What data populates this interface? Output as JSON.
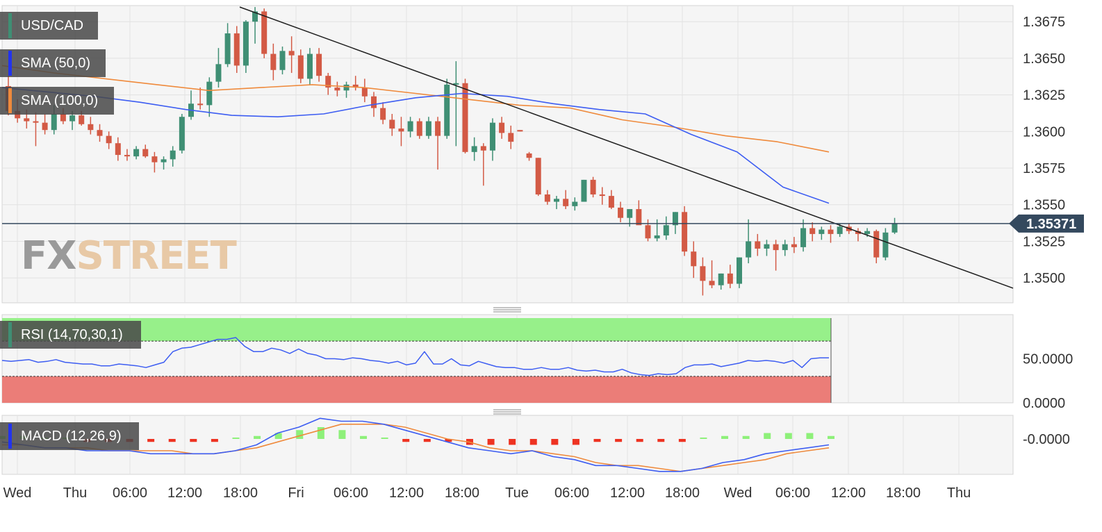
{
  "labels": {
    "pair": "USD/CAD",
    "sma50": "SMA (50,0)",
    "sma100": "SMA (100,0)",
    "rsi": "RSI (14,70,30,1)",
    "macd": "MACD (12,26,9)"
  },
  "watermark": {
    "fx": "FX",
    "street": "STREET"
  },
  "colors": {
    "up": "#3f8f74",
    "down": "#d35a45",
    "sma50": "#3d5df2",
    "sma100": "#ef8a3c",
    "trendline": "#1e1e1e",
    "price_line": "#34495e",
    "price_badge": "#34495e",
    "rsi_line": "#3d5df2",
    "rsi_overbought_zone": "#97f08a",
    "rsi_oversold_zone": "#eb7d78",
    "macd_line": "#3d5df2",
    "signal_line": "#ef8a3c",
    "hist_pos": "#8ef07a",
    "hist_neg": "#ee3322",
    "pair_bar": "#3f8f74",
    "sma50_bar": "#2233ee",
    "sma100_bar": "#ef8a3c",
    "rsi_bar": "#3f8f74",
    "macd_bar": "#2233ee"
  },
  "chart_data": [
    {
      "type": "candlestick",
      "title": "USD/CAD",
      "x_ticks": [
        "Wed",
        "Thu",
        "06:00",
        "12:00",
        "18:00",
        "Fri",
        "06:00",
        "12:00",
        "18:00",
        "Tue",
        "06:00",
        "12:00",
        "18:00",
        "Wed",
        "06:00",
        "12:00",
        "18:00",
        "Thu"
      ],
      "y_ticks": [
        "1.3675",
        "1.3650",
        "1.3625",
        "1.3600",
        "1.3575",
        "1.3550",
        "1.3525",
        "1.3500"
      ],
      "ylim": [
        1.3483,
        1.3686
      ],
      "current_price": "1.35371",
      "ohlc": [
        [
          1.3631,
          1.3638,
          1.3611,
          1.3614
        ],
        [
          1.3614,
          1.3622,
          1.3606,
          1.3609
        ],
        [
          1.3609,
          1.3615,
          1.3602,
          1.3607
        ],
        [
          1.3607,
          1.3613,
          1.359,
          1.3606
        ],
        [
          1.3606,
          1.3612,
          1.3598,
          1.3601
        ],
        [
          1.3601,
          1.3618,
          1.3598,
          1.3612
        ],
        [
          1.3612,
          1.3616,
          1.3605,
          1.3607
        ],
        [
          1.3607,
          1.3614,
          1.3601,
          1.3611
        ],
        [
          1.3611,
          1.3614,
          1.3604,
          1.3605
        ],
        [
          1.3605,
          1.361,
          1.3598,
          1.3601
        ],
        [
          1.3601,
          1.3605,
          1.3593,
          1.3597
        ],
        [
          1.3597,
          1.36,
          1.3588,
          1.3592
        ],
        [
          1.3592,
          1.3596,
          1.358,
          1.3584
        ],
        [
          1.3584,
          1.3588,
          1.358,
          1.3583
        ],
        [
          1.3583,
          1.359,
          1.3581,
          1.3588
        ],
        [
          1.3588,
          1.3591,
          1.3582,
          1.3583
        ],
        [
          1.3583,
          1.3586,
          1.3572,
          1.3579
        ],
        [
          1.3579,
          1.3583,
          1.3574,
          1.3581
        ],
        [
          1.3581,
          1.359,
          1.3576,
          1.3587
        ],
        [
          1.3587,
          1.3612,
          1.3585,
          1.361
        ],
        [
          1.361,
          1.3628,
          1.3608,
          1.3619
        ],
        [
          1.3619,
          1.363,
          1.3615,
          1.3618
        ],
        [
          1.3618,
          1.3637,
          1.361,
          1.3634
        ],
        [
          1.3634,
          1.3657,
          1.363,
          1.3646
        ],
        [
          1.3646,
          1.3674,
          1.3644,
          1.3667
        ],
        [
          1.3667,
          1.3672,
          1.364,
          1.3645
        ],
        [
          1.3645,
          1.3676,
          1.364,
          1.3675
        ],
        [
          1.3675,
          1.3685,
          1.366,
          1.3682
        ],
        [
          1.3682,
          1.3684,
          1.365,
          1.3653
        ],
        [
          1.3653,
          1.366,
          1.3635,
          1.3642
        ],
        [
          1.3642,
          1.3658,
          1.3639,
          1.3655
        ],
        [
          1.3655,
          1.3665,
          1.364,
          1.3652
        ],
        [
          1.3652,
          1.3656,
          1.3633,
          1.3636
        ],
        [
          1.3636,
          1.3657,
          1.3632,
          1.3653
        ],
        [
          1.3653,
          1.3657,
          1.3634,
          1.3638
        ],
        [
          1.3638,
          1.364,
          1.3625,
          1.363
        ],
        [
          1.363,
          1.3634,
          1.3624,
          1.3628
        ],
        [
          1.3628,
          1.3634,
          1.3623,
          1.3632
        ],
        [
          1.3632,
          1.3638,
          1.3628,
          1.363
        ],
        [
          1.363,
          1.3636,
          1.362,
          1.3624
        ],
        [
          1.3624,
          1.3627,
          1.361,
          1.3616
        ],
        [
          1.3616,
          1.362,
          1.3605,
          1.3608
        ],
        [
          1.3608,
          1.3612,
          1.3597,
          1.3602
        ],
        [
          1.3602,
          1.361,
          1.359,
          1.36
        ],
        [
          1.36,
          1.361,
          1.3596,
          1.3607
        ],
        [
          1.3607,
          1.3609,
          1.3595,
          1.3597
        ],
        [
          1.3597,
          1.361,
          1.3595,
          1.3607
        ],
        [
          1.3607,
          1.361,
          1.3574,
          1.3597
        ],
        [
          1.3597,
          1.3636,
          1.3595,
          1.3632
        ],
        [
          1.3632,
          1.3648,
          1.359,
          1.3633
        ],
        [
          1.3633,
          1.3636,
          1.3585,
          1.3586
        ],
        [
          1.3586,
          1.3596,
          1.358,
          1.359
        ],
        [
          1.359,
          1.3592,
          1.3563,
          1.3587
        ],
        [
          1.3587,
          1.3609,
          1.358,
          1.3606
        ],
        [
          1.3606,
          1.361,
          1.3595,
          1.3599
        ],
        [
          1.3599,
          1.3604,
          1.3588,
          1.3593
        ],
        [
          1.3601,
          1.3601,
          1.36,
          1.36
        ],
        [
          1.3585,
          1.3586,
          1.358,
          1.3582
        ],
        [
          1.3582,
          1.3582,
          1.3556,
          1.3557
        ],
        [
          1.3557,
          1.356,
          1.355,
          1.3552
        ],
        [
          1.3552,
          1.3556,
          1.3547,
          1.3554
        ],
        [
          1.3554,
          1.356,
          1.3547,
          1.3549
        ],
        [
          1.3549,
          1.3555,
          1.3546,
          1.3552
        ],
        [
          1.3552,
          1.3567,
          1.3552,
          1.3567
        ],
        [
          1.3567,
          1.3569,
          1.3555,
          1.3557
        ],
        [
          1.3557,
          1.3562,
          1.355,
          1.3556
        ],
        [
          1.3556,
          1.356,
          1.3547,
          1.3548
        ],
        [
          1.3548,
          1.3552,
          1.3538,
          1.3541
        ],
        [
          1.3541,
          1.3546,
          1.3535,
          1.3547
        ],
        [
          1.3547,
          1.3553,
          1.3537,
          1.3536
        ],
        [
          1.3536,
          1.354,
          1.3525,
          1.3527
        ],
        [
          1.3527,
          1.354,
          1.3525,
          1.3529
        ],
        [
          1.3529,
          1.3542,
          1.3526,
          1.3536
        ],
        [
          1.3536,
          1.3545,
          1.353,
          1.3545
        ],
        [
          1.3545,
          1.3549,
          1.3515,
          1.3518
        ],
        [
          1.3518,
          1.3525,
          1.35,
          1.3508
        ],
        [
          1.3508,
          1.3514,
          1.3488,
          1.3498
        ],
        [
          1.3498,
          1.3512,
          1.3493,
          1.3495
        ],
        [
          1.3495,
          1.3503,
          1.3492,
          1.3503
        ],
        [
          1.3503,
          1.3509,
          1.3493,
          1.3496
        ],
        [
          1.3496,
          1.3514,
          1.3493,
          1.3514
        ],
        [
          1.3514,
          1.354,
          1.351,
          1.3525
        ],
        [
          1.3525,
          1.353,
          1.3515,
          1.352
        ],
        [
          1.352,
          1.3526,
          1.3515,
          1.3523
        ],
        [
          1.3523,
          1.3526,
          1.3505,
          1.3519
        ],
        [
          1.3519,
          1.3526,
          1.3515,
          1.3523
        ],
        [
          1.3523,
          1.3528,
          1.3517,
          1.3521
        ],
        [
          1.3521,
          1.354,
          1.3518,
          1.3534
        ],
        [
          1.3534,
          1.3538,
          1.3525,
          1.353
        ],
        [
          1.353,
          1.3535,
          1.3526,
          1.3533
        ],
        [
          1.3533,
          1.3536,
          1.3524,
          1.353
        ],
        [
          1.353,
          1.3537,
          1.3528,
          1.3535
        ],
        [
          1.3535,
          1.3537,
          1.353,
          1.3532
        ],
        [
          1.3532,
          1.3534,
          1.3525,
          1.353
        ],
        [
          1.353,
          1.3534,
          1.3528,
          1.3532
        ],
        [
          1.3532,
          1.3533,
          1.351,
          1.3514
        ],
        [
          1.3514,
          1.3534,
          1.3512,
          1.3531
        ],
        [
          1.3531,
          1.3541,
          1.353,
          1.3537
        ]
      ],
      "sma50": [
        1.363,
        1.3627,
        1.3624,
        1.362,
        1.3615,
        1.3611,
        1.361,
        1.3612,
        1.3618,
        1.3623,
        1.3626,
        1.3624,
        1.3619,
        1.3615,
        1.3612,
        1.3598,
        1.3586,
        1.3562,
        1.3551
      ],
      "sma100": [
        1.3645,
        1.364,
        1.3636,
        1.3632,
        1.3628,
        1.363,
        1.3632,
        1.363,
        1.3626,
        1.3622,
        1.3618,
        1.3616,
        1.3608,
        1.3603,
        1.3597,
        1.3593,
        1.3586
      ],
      "trendline": [
        [
          1.3685,
          1.3493
        ]
      ]
    },
    {
      "type": "line",
      "title": "RSI (14,70,30,1)",
      "y_ticks": [
        "50.0000",
        "0.0000"
      ],
      "ylim": [
        0,
        100
      ],
      "overbought": 70,
      "oversold": 30,
      "values": [
        48,
        47,
        48,
        49,
        46,
        47,
        49,
        46,
        45,
        44,
        44,
        42,
        42,
        44,
        43,
        42,
        40,
        43,
        46,
        58,
        62,
        63,
        66,
        69,
        72,
        72,
        74,
        64,
        58,
        58,
        62,
        60,
        56,
        61,
        56,
        54,
        50,
        50,
        49,
        51,
        50,
        48,
        47,
        45,
        47,
        43,
        45,
        58,
        44,
        44,
        50,
        43,
        42,
        47,
        44,
        41,
        40,
        40,
        38,
        38,
        40,
        38,
        38,
        40,
        37,
        36,
        37,
        35,
        35,
        38,
        34,
        32,
        31,
        33,
        32,
        33,
        40,
        43,
        43,
        44,
        41,
        43,
        45,
        48,
        47,
        48,
        47,
        45,
        48,
        40,
        50,
        51,
        51
      ]
    },
    {
      "type": "bar",
      "title": "MACD (12,26,9)",
      "y_ticks": [
        "-0.0000"
      ],
      "ylim": [
        -0.0012,
        0.0008
      ],
      "macd": [
        -0.0001,
        -0.0002,
        -0.0003,
        -0.0003,
        -0.0004,
        -0.0004,
        -0.0004,
        -0.0005,
        -0.0005,
        -0.0005,
        -0.0005,
        -0.0004,
        -0.0002,
        0.0002,
        0.0004,
        0.0007,
        0.0006,
        0.0006,
        0.0005,
        0.0003,
        0.0001,
        -0.0001,
        -0.0003,
        -0.0004,
        -0.0005,
        -0.0004,
        -0.0006,
        -0.0007,
        -0.0009,
        -0.0009,
        -0.001,
        -0.0011,
        -0.0011,
        -0.001,
        -0.0008,
        -0.0007,
        -0.0005,
        -0.0004,
        -0.0003,
        -0.0002
      ],
      "signal": [
        -0.0002,
        -0.0002,
        -0.0003,
        -0.0003,
        -0.0003,
        -0.0004,
        -0.0004,
        -0.0004,
        -0.0004,
        -0.0005,
        -0.0005,
        -0.0004,
        -0.0003,
        -0.0001,
        0.0001,
        0.0003,
        0.0005,
        0.0005,
        0.0005,
        0.0004,
        0.0002,
        0.0,
        -0.0001,
        -0.0003,
        -0.0004,
        -0.0004,
        -0.0005,
        -0.0006,
        -0.0008,
        -0.0009,
        -0.0009,
        -0.001,
        -0.0011,
        -0.001,
        -0.0009,
        -0.0008,
        -0.0007,
        -0.0005,
        -0.0004,
        -0.0003
      ],
      "histogram": [
        0.0001,
        0.0001,
        0.0,
        0.0,
        -0.0001,
        -0.0001,
        -0.0001,
        -0.0001,
        -0.0001,
        -0.0001,
        -0.0001,
        0.0,
        0.0001,
        0.0002,
        0.0003,
        0.0004,
        0.0003,
        0.0001,
        0.0,
        -0.0001,
        -0.0001,
        -0.0001,
        -0.0002,
        -0.0002,
        -0.0002,
        -0.0002,
        -0.0002,
        -0.0002,
        -0.0001,
        -0.0001,
        -0.0001,
        -0.0001,
        -0.0001,
        0.0,
        0.0001,
        0.0001,
        0.0002,
        0.0002,
        0.0002,
        0.0001
      ]
    }
  ]
}
